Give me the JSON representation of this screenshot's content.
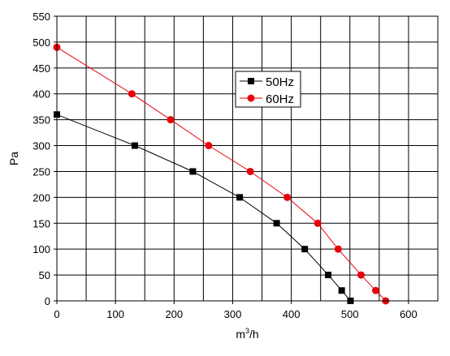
{
  "chart_data": {
    "type": "line",
    "title": "",
    "xlabel_base": "m",
    "xlabel_sup": "3",
    "xlabel_tail": "/h",
    "ylabel": "Pa",
    "xlim": [
      0,
      650
    ],
    "ylim": [
      0,
      550
    ],
    "x_ticks": [
      0,
      100,
      200,
      300,
      400,
      500,
      600
    ],
    "y_ticks": [
      0,
      50,
      100,
      150,
      200,
      250,
      300,
      350,
      400,
      450,
      500,
      550
    ],
    "x_grid_step": 50,
    "grid": true,
    "legend_position": "top-center",
    "series": [
      {
        "name": "50Hz",
        "color": "#000000",
        "marker": "square",
        "x": [
          0,
          133,
          232,
          312,
          375,
          423,
          463,
          486,
          501
        ],
        "y": [
          360,
          300,
          250,
          200,
          150,
          100,
          50,
          20,
          0
        ]
      },
      {
        "name": "60Hz",
        "color": "#e8000b",
        "marker": "circle",
        "x": [
          0,
          128,
          194,
          259,
          330,
          393,
          445,
          480,
          519,
          544,
          561
        ],
        "y": [
          490,
          400,
          350,
          300,
          250,
          200,
          150,
          100,
          50,
          20,
          0
        ]
      }
    ]
  }
}
